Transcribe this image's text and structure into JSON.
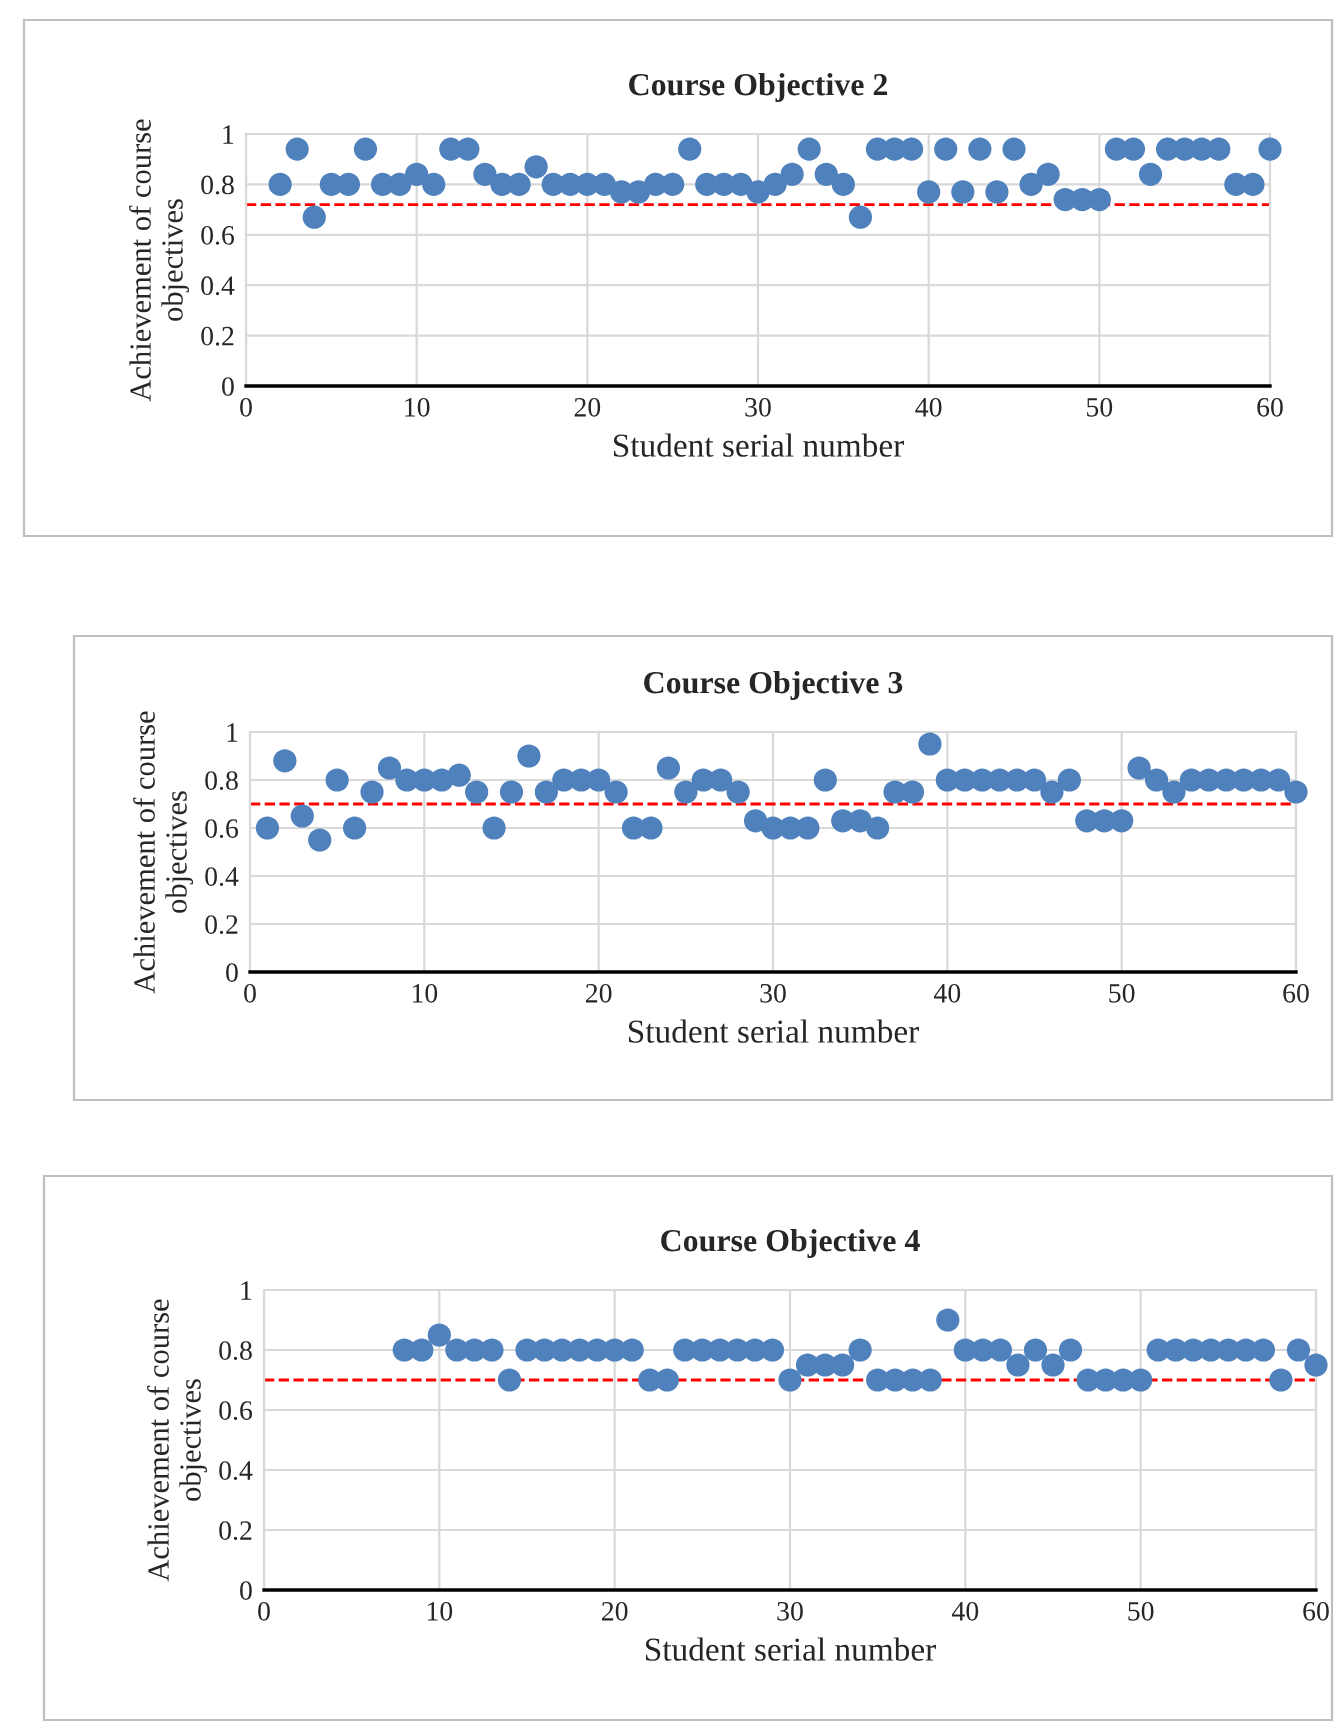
{
  "chart_data": [
    {
      "type": "scatter",
      "title": "Course Objective 2",
      "xlabel": "Student serial number",
      "ylabel": "Achievement of course\nobjectives",
      "xlim": [
        0,
        60
      ],
      "xticks": [
        0,
        10,
        20,
        30,
        40,
        50,
        60
      ],
      "ylim": [
        0,
        1
      ],
      "yticks": [
        0,
        0.2,
        0.4,
        0.6,
        0.8,
        1
      ],
      "grid": true,
      "marker": "circle",
      "ref_lines": [
        {
          "axis": "y",
          "value": 0.72,
          "color": "#ff0000",
          "line_style": "dashed"
        }
      ],
      "series": [
        {
          "color": "#4f81bd",
          "x": [
            2,
            3,
            4,
            5,
            6,
            7,
            8,
            9,
            10,
            11,
            12,
            13,
            14,
            15,
            16,
            17,
            18,
            19,
            20,
            21,
            22,
            23,
            24,
            25,
            26,
            27,
            28,
            29,
            30,
            31,
            32,
            33,
            34,
            35,
            36,
            37,
            38,
            39,
            40,
            41,
            42,
            43,
            44,
            45,
            46,
            47,
            48,
            49,
            50,
            51,
            52,
            53,
            54,
            55,
            56,
            57,
            58,
            59,
            60
          ],
          "values": [
            0.8,
            0.94,
            0.67,
            0.8,
            0.8,
            0.94,
            0.8,
            0.8,
            0.84,
            0.8,
            0.94,
            0.94,
            0.84,
            0.8,
            0.8,
            0.87,
            0.8,
            0.8,
            0.8,
            0.8,
            0.77,
            0.77,
            0.8,
            0.8,
            0.94,
            0.8,
            0.8,
            0.8,
            0.77,
            0.8,
            0.84,
            0.94,
            0.84,
            0.8,
            0.67,
            0.94,
            0.94,
            0.94,
            0.77,
            0.94,
            0.77,
            0.94,
            0.77,
            0.94,
            0.8,
            0.84,
            0.74,
            0.74,
            0.74,
            0.94,
            0.94,
            0.84,
            0.94,
            0.94,
            0.94,
            0.94,
            0.8,
            0.8,
            0.94
          ]
        }
      ]
    },
    {
      "type": "scatter",
      "title": "Course Objective 3",
      "xlabel": "Student serial number",
      "ylabel": "Achievement of course\nobjectives",
      "xlim": [
        0,
        60
      ],
      "xticks": [
        0,
        10,
        20,
        30,
        40,
        50,
        60
      ],
      "ylim": [
        0,
        1
      ],
      "yticks": [
        0,
        0.2,
        0.4,
        0.6,
        0.8,
        1
      ],
      "grid": true,
      "marker": "circle",
      "ref_lines": [
        {
          "axis": "y",
          "value": 0.7,
          "color": "#ff0000",
          "line_style": "dashed"
        }
      ],
      "series": [
        {
          "color": "#4f81bd",
          "x": [
            1,
            2,
            3,
            4,
            5,
            6,
            7,
            8,
            9,
            10,
            11,
            12,
            13,
            14,
            15,
            16,
            17,
            18,
            19,
            20,
            21,
            22,
            23,
            24,
            25,
            26,
            27,
            28,
            29,
            30,
            31,
            32,
            33,
            34,
            35,
            36,
            37,
            38,
            39,
            40,
            41,
            42,
            43,
            44,
            45,
            46,
            47,
            48,
            49,
            50,
            51,
            52,
            53,
            54,
            55,
            56,
            57,
            58,
            59,
            60
          ],
          "values": [
            0.6,
            0.88,
            0.65,
            0.55,
            0.8,
            0.6,
            0.75,
            0.85,
            0.8,
            0.8,
            0.8,
            0.82,
            0.75,
            0.6,
            0.75,
            0.9,
            0.75,
            0.8,
            0.8,
            0.8,
            0.75,
            0.6,
            0.6,
            0.85,
            0.75,
            0.8,
            0.8,
            0.75,
            0.63,
            0.6,
            0.6,
            0.6,
            0.8,
            0.63,
            0.63,
            0.6,
            0.75,
            0.75,
            0.95,
            0.8,
            0.8,
            0.8,
            0.8,
            0.8,
            0.8,
            0.75,
            0.8,
            0.63,
            0.63,
            0.63,
            0.85,
            0.8,
            0.75,
            0.8,
            0.8,
            0.8,
            0.8,
            0.8,
            0.8,
            0.75
          ]
        }
      ]
    },
    {
      "type": "scatter",
      "title": "Course Objective 4",
      "xlabel": "Student serial number",
      "ylabel": "Achievement of course\nobjectives",
      "xlim": [
        0,
        60
      ],
      "xticks": [
        0,
        10,
        20,
        30,
        40,
        50,
        60
      ],
      "ylim": [
        0,
        1
      ],
      "yticks": [
        0,
        0.2,
        0.4,
        0.6,
        0.8,
        1
      ],
      "grid": true,
      "marker": "circle",
      "ref_lines": [
        {
          "axis": "y",
          "value": 0.7,
          "color": "#ff0000",
          "line_style": "dashed"
        }
      ],
      "series": [
        {
          "color": "#4f81bd",
          "x": [
            8,
            9,
            10,
            11,
            12,
            13,
            14,
            15,
            16,
            17,
            18,
            19,
            20,
            21,
            22,
            23,
            24,
            25,
            26,
            27,
            28,
            29,
            30,
            31,
            32,
            33,
            34,
            35,
            36,
            37,
            38,
            39,
            40,
            41,
            42,
            43,
            44,
            45,
            46,
            47,
            48,
            49,
            50,
            51,
            52,
            53,
            54,
            55,
            56,
            57,
            58,
            59,
            60
          ],
          "values": [
            0.8,
            0.8,
            0.85,
            0.8,
            0.8,
            0.8,
            0.7,
            0.8,
            0.8,
            0.8,
            0.8,
            0.8,
            0.8,
            0.8,
            0.7,
            0.7,
            0.8,
            0.8,
            0.8,
            0.8,
            0.8,
            0.8,
            0.7,
            0.75,
            0.75,
            0.75,
            0.8,
            0.7,
            0.7,
            0.7,
            0.7,
            0.9,
            0.8,
            0.8,
            0.8,
            0.75,
            0.8,
            0.75,
            0.8,
            0.7,
            0.7,
            0.7,
            0.7,
            0.8,
            0.8,
            0.8,
            0.8,
            0.8,
            0.8,
            0.8,
            0.7,
            0.8,
            0.75
          ]
        }
      ]
    }
  ]
}
